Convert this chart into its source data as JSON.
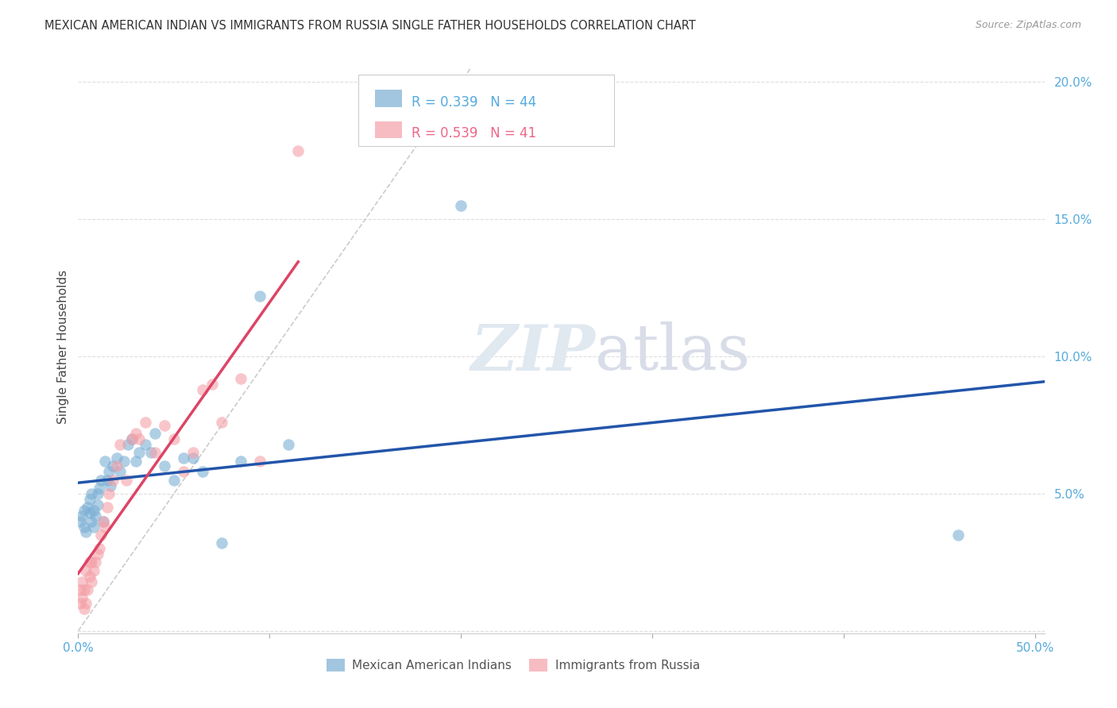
{
  "title": "MEXICAN AMERICAN INDIAN VS IMMIGRANTS FROM RUSSIA SINGLE FATHER HOUSEHOLDS CORRELATION CHART",
  "source": "Source: ZipAtlas.com",
  "ylabel": "Single Father Households",
  "watermark_zip": "ZIP",
  "watermark_atlas": "atlas",
  "xlim": [
    0.0,
    0.505
  ],
  "ylim": [
    -0.001,
    0.208
  ],
  "xticks": [
    0.0,
    0.5
  ],
  "yticks": [
    0.0,
    0.05,
    0.1,
    0.15,
    0.2
  ],
  "xticklabels": [
    "0.0%",
    "50.0%"
  ],
  "yticklabels": [
    "",
    "5.0%",
    "10.0%",
    "15.0%",
    "20.0%"
  ],
  "series1_label": "Mexican American Indians",
  "series2_label": "Immigrants from Russia",
  "R1": 0.339,
  "N1": 44,
  "R2": 0.539,
  "N2": 41,
  "color1": "#7BAFD4",
  "color2": "#F4A0A8",
  "trend1_color": "#2255AA",
  "trend2_color": "#DD4466",
  "diag_color": "#CCCCCC",
  "background_color": "#FFFFFF",
  "series1_x": [
    0.001,
    0.002,
    0.003,
    0.003,
    0.004,
    0.005,
    0.006,
    0.006,
    0.007,
    0.007,
    0.008,
    0.008,
    0.009,
    0.01,
    0.01,
    0.011,
    0.012,
    0.013,
    0.014,
    0.015,
    0.016,
    0.017,
    0.018,
    0.02,
    0.022,
    0.024,
    0.026,
    0.028,
    0.03,
    0.032,
    0.035,
    0.038,
    0.04,
    0.045,
    0.05,
    0.055,
    0.06,
    0.065,
    0.075,
    0.085,
    0.095,
    0.11,
    0.2,
    0.46
  ],
  "series1_y": [
    0.04,
    0.042,
    0.038,
    0.044,
    0.036,
    0.045,
    0.048,
    0.043,
    0.05,
    0.04,
    0.038,
    0.044,
    0.042,
    0.046,
    0.05,
    0.052,
    0.055,
    0.04,
    0.062,
    0.055,
    0.058,
    0.053,
    0.06,
    0.063,
    0.058,
    0.062,
    0.068,
    0.07,
    0.062,
    0.065,
    0.068,
    0.065,
    0.072,
    0.06,
    0.055,
    0.063,
    0.063,
    0.058,
    0.032,
    0.062,
    0.122,
    0.068,
    0.155,
    0.035
  ],
  "series2_x": [
    0.001,
    0.001,
    0.002,
    0.002,
    0.003,
    0.003,
    0.004,
    0.004,
    0.005,
    0.006,
    0.006,
    0.007,
    0.007,
    0.008,
    0.009,
    0.01,
    0.011,
    0.012,
    0.013,
    0.014,
    0.015,
    0.016,
    0.018,
    0.02,
    0.022,
    0.025,
    0.028,
    0.03,
    0.032,
    0.035,
    0.04,
    0.045,
    0.05,
    0.055,
    0.06,
    0.065,
    0.07,
    0.075,
    0.085,
    0.095,
    0.115
  ],
  "series2_y": [
    0.01,
    0.015,
    0.012,
    0.018,
    0.008,
    0.015,
    0.01,
    0.022,
    0.015,
    0.02,
    0.025,
    0.018,
    0.025,
    0.022,
    0.025,
    0.028,
    0.03,
    0.035,
    0.04,
    0.038,
    0.045,
    0.05,
    0.055,
    0.06,
    0.068,
    0.055,
    0.07,
    0.072,
    0.07,
    0.076,
    0.065,
    0.075,
    0.07,
    0.058,
    0.065,
    0.088,
    0.09,
    0.076,
    0.092,
    0.062,
    0.175
  ]
}
